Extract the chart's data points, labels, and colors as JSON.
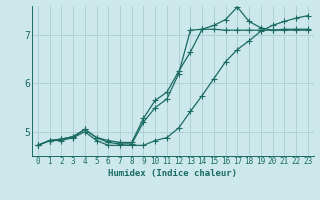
{
  "xlabel": "Humidex (Indice chaleur)",
  "background_color": "#cde8eb",
  "grid_color": "#aacdd1",
  "line_color": "#1a6b62",
  "xlim": [
    -0.5,
    23.5
  ],
  "ylim": [
    4.5,
    7.6
  ],
  "yticks": [
    5,
    6,
    7
  ],
  "xticks": [
    0,
    1,
    2,
    3,
    4,
    5,
    6,
    7,
    8,
    9,
    10,
    11,
    12,
    13,
    14,
    15,
    16,
    17,
    18,
    19,
    20,
    21,
    22,
    23
  ],
  "line1_x": [
    0,
    1,
    2,
    3,
    4,
    5,
    6,
    7,
    8,
    9,
    10,
    11,
    12,
    13,
    14,
    15,
    16,
    17,
    18,
    19,
    20,
    21,
    22,
    23
  ],
  "line1_y": [
    4.72,
    4.82,
    4.82,
    4.88,
    5.0,
    4.82,
    4.72,
    4.72,
    4.72,
    4.72,
    4.82,
    4.88,
    5.08,
    5.42,
    5.75,
    6.1,
    6.45,
    6.7,
    6.88,
    7.08,
    7.2,
    7.28,
    7.35,
    7.4
  ],
  "line2_x": [
    0,
    1,
    2,
    3,
    4,
    5,
    6,
    7,
    8,
    9,
    10,
    11,
    12,
    13,
    14,
    15,
    16,
    17,
    18,
    19,
    20,
    21,
    22,
    23
  ],
  "line2_y": [
    4.72,
    4.82,
    4.85,
    4.9,
    5.05,
    4.88,
    4.78,
    4.75,
    4.75,
    5.2,
    5.5,
    5.68,
    6.2,
    7.1,
    7.12,
    7.12,
    7.1,
    7.1,
    7.1,
    7.1,
    7.1,
    7.1,
    7.1,
    7.1
  ],
  "line3_x": [
    0,
    1,
    2,
    3,
    4,
    5,
    6,
    7,
    8,
    9,
    10,
    11,
    12,
    13,
    14,
    15,
    16,
    17,
    18,
    19,
    20,
    21,
    22,
    23
  ],
  "line3_y": [
    4.72,
    4.82,
    4.85,
    4.9,
    5.05,
    4.88,
    4.82,
    4.78,
    4.78,
    5.28,
    5.65,
    5.82,
    6.25,
    6.65,
    7.12,
    7.2,
    7.32,
    7.58,
    7.28,
    7.15,
    7.1,
    7.12,
    7.12,
    7.12
  ],
  "marker_size": 2.2,
  "linewidth": 0.9,
  "tick_fontsize": 5.5,
  "xlabel_fontsize": 6.5
}
